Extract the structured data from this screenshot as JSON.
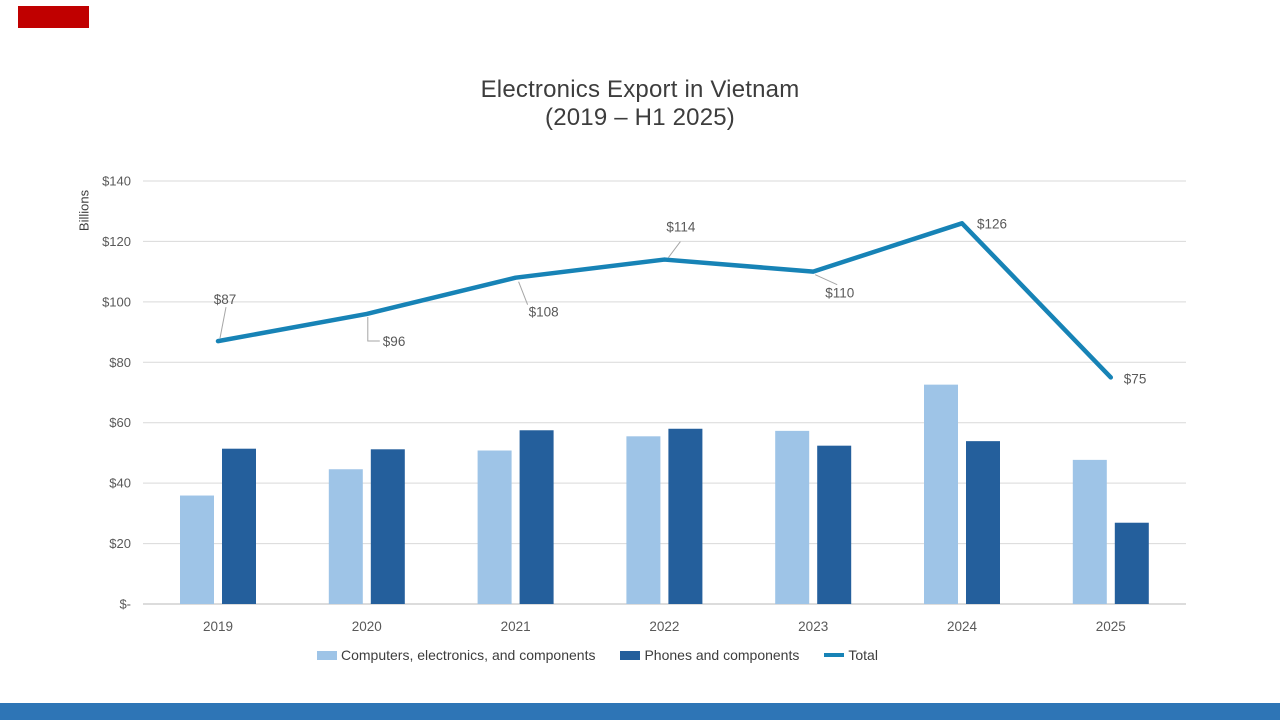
{
  "slide": {
    "title_line1": "Electronics Export in Vietnam",
    "title_line2": "(2019 – H1 2025)"
  },
  "decorations": {
    "top_left_accent_color": "#C00000",
    "bottom_band_color": "#2E75B6"
  },
  "legend": {
    "items": [
      {
        "label": "Computers, electronics, and components",
        "swatch": "rect",
        "color": "#9EC4E7"
      },
      {
        "label": "Phones and components",
        "swatch": "rect",
        "color": "#245F9C"
      },
      {
        "label": "Total",
        "swatch": "line",
        "color": "#1783B6"
      }
    ]
  },
  "chart_data": {
    "type": "combo",
    "title": "Electronics Export in Vietnam (2019 – H1 2025)",
    "xlabel": "",
    "ylabel": "Billions",
    "ylim": [
      0,
      140
    ],
    "grid": true,
    "legend_position": "bottom",
    "yticks": [
      {
        "value": 140,
        "label": "$140"
      },
      {
        "value": 120,
        "label": "$120"
      },
      {
        "value": 100,
        "label": "$100"
      },
      {
        "value": 80,
        "label": "$80"
      },
      {
        "value": 60,
        "label": "$60"
      },
      {
        "value": 40,
        "label": "$40"
      },
      {
        "value": 20,
        "label": "$20"
      },
      {
        "value": 0,
        "label": "$-"
      }
    ],
    "categories": [
      "2019",
      "2020",
      "2021",
      "2022",
      "2023",
      "2024",
      "2025"
    ],
    "series": [
      {
        "name": "Computers, electronics, and components",
        "chart_type": "bar",
        "color": "#9EC4E7",
        "values": [
          35.9,
          44.6,
          50.8,
          55.5,
          57.3,
          72.6,
          47.7
        ]
      },
      {
        "name": "Phones and components",
        "chart_type": "bar",
        "color": "#245F9C",
        "values": [
          51.4,
          51.2,
          57.5,
          58.0,
          52.4,
          53.9,
          26.9
        ]
      },
      {
        "name": "Total",
        "chart_type": "line",
        "color": "#1783B6",
        "values": [
          87,
          96,
          108,
          114,
          110,
          126,
          75
        ],
        "data_labels": [
          "$87",
          "$96",
          "$108",
          "$114",
          "$110",
          "$126",
          "$75"
        ]
      }
    ]
  }
}
